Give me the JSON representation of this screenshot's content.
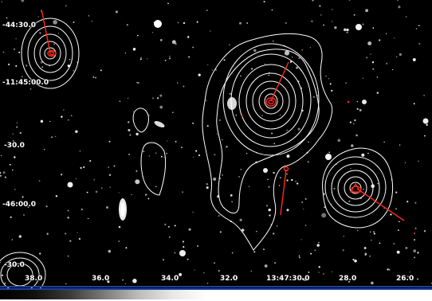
{
  "image": {
    "description_tag": "optical-sky-image-with-xray-contours",
    "colors": {
      "background": "#050505",
      "contour": "#ffffff",
      "marker": "#ff2a1a",
      "axis_accent": "#1f3f9f"
    }
  },
  "axis": {
    "dec_labels": [
      "-44:30.0",
      "-11:45:00.0",
      "-30.0",
      "-46:00.0",
      "-30.0"
    ],
    "ra_labels": [
      "38.0",
      "36.0",
      "34.0",
      "32.0",
      "13:47:30.0",
      "28.0",
      "26.0"
    ]
  },
  "colorbar": {
    "type": "grayscale",
    "min_color": "#000000",
    "max_color": "#ffffff"
  }
}
